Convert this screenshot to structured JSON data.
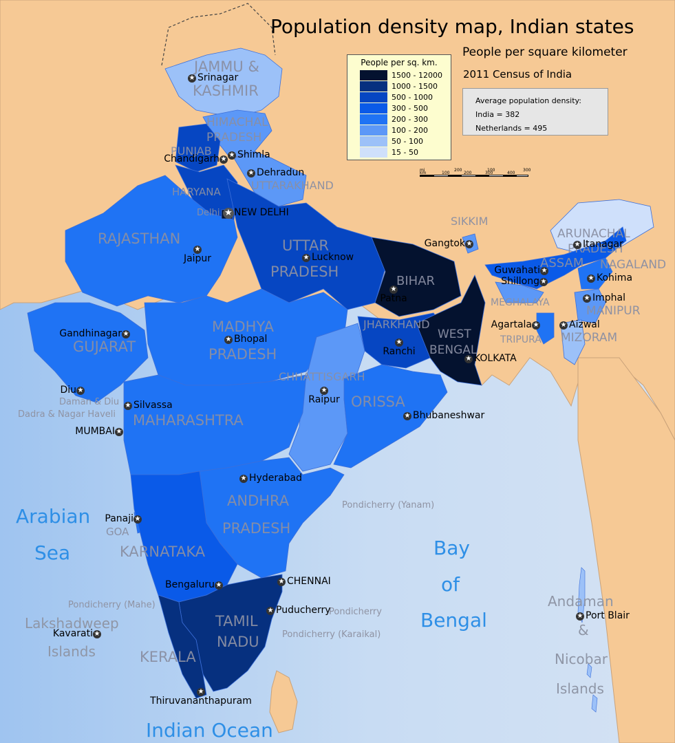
{
  "title": "Population density map, Indian states",
  "subtitle": "People per square kilometer",
  "census": "2011 Census of India",
  "legend": {
    "title": "People per sq. km.",
    "items": [
      {
        "label": "1500 - 12000",
        "color": "#04122f"
      },
      {
        "label": "1000 - 1500",
        "color": "#06307f"
      },
      {
        "label": "500 - 1000",
        "color": "#0646c2"
      },
      {
        "label": "300 - 500",
        "color": "#0a5ae8"
      },
      {
        "label": "200 - 300",
        "color": "#1f73f4"
      },
      {
        "label": "100 - 200",
        "color": "#5c98f7"
      },
      {
        "label": "50 - 100",
        "color": "#9cc1f8"
      },
      {
        "label": "15 - 50",
        "color": "#cfe0fb"
      }
    ]
  },
  "average": {
    "heading": "Average population density:",
    "india": "India = 382",
    "netherlands": "Netherlands = 495"
  },
  "scale": {
    "top": [
      "0",
      "200",
      "100",
      "300"
    ],
    "bottom": [
      "0",
      "100",
      "200",
      "300",
      "400"
    ],
    "unit_top": "mi",
    "unit_bottom": "km"
  },
  "states": {
    "jk": "JAMMU &",
    "jk2": "KASHMIR",
    "hp": "HIMACHAL",
    "hp2": "PRADESH",
    "punjab": "PUNJAB",
    "haryana": "HARYANA",
    "delhi": "Delhi",
    "uttarakhand": "UTTARAKHAND",
    "rajasthan": "RAJASTHAN",
    "up": "UTTAR",
    "up2": "PRADESH",
    "bihar": "BIHAR",
    "sikkim": "SIKKIM",
    "arunachal": "ARUNACHAL",
    "arunachal2": "PRADESH",
    "assam": "ASSAM",
    "nagaland": "NAGALAND",
    "meghalaya": "MEGHALAYA",
    "manipur": "MANIPUR",
    "tripura": "TRIPURA",
    "mizoram": "MIZORAM",
    "jharkhand": "JHARKHAND",
    "wb": "WEST",
    "wb2": "BENGAL",
    "mp": "MADHYA",
    "mp2": "PRADESH",
    "gujarat": "GUJARAT",
    "chhattisgarh": "CHHATTISGARH",
    "orissa": "ORISSA",
    "maharashtra": "MAHARASHTRA",
    "ap": "ANDHRA",
    "ap2": "PRADESH",
    "goa": "GOA",
    "karnataka": "KARNATAKA",
    "tn": "TAMIL",
    "tn2": "NADU",
    "kerala": "KERALA"
  },
  "uts": {
    "daman": "Daman & Diu",
    "dadra": "Dadra & Nagar Haveli",
    "yanam": "Pondicherry (Yanam)",
    "mahe": "Pondicherry (Mahe)",
    "pondi": "Pondicherry",
    "karaikal": "Pondicherry (Karaikal)"
  },
  "islands": {
    "andaman": "Andaman",
    "amp": "&",
    "nicobar": "Nicobar",
    "islands": "Islands",
    "lakshadweep": "Lakshadweep",
    "lak_islands": "Islands"
  },
  "seas": {
    "arabian": "Arabian",
    "arabian2": "Sea",
    "bay": "Bay",
    "bay2": "of",
    "bay3": "Bengal",
    "ocean": "Indian Ocean"
  },
  "cities": {
    "srinagar": "Srinagar",
    "shimla": "Shimla",
    "chandigarh": "Chandigarh",
    "dehradun": "Dehradun",
    "newdelhi": "NEW DELHI",
    "jaipur": "Jaipur",
    "lucknow": "Lucknow",
    "gangtok": "Gangtok",
    "itanagar": "Itanagar",
    "guwahati": "Guwahati",
    "shillong": "Shillong",
    "kohima": "Kohima",
    "imphal": "Imphal",
    "patna": "Patna",
    "agartala": "Agartala",
    "aizwal": "Aizwal",
    "gandhinagar": "Gandhinagar",
    "bhopal": "Bhopal",
    "ranchi": "Ranchi",
    "kolkata": "KOLKATA",
    "diu": "Diu",
    "silvassa": "Silvassa",
    "raipur": "Raipur",
    "bhubaneshwar": "Bhubaneshwar",
    "mumbai": "MUMBAI",
    "hyderabad": "Hyderabad",
    "panaji": "Panaji",
    "chennai": "CHENNAI",
    "bengaluru": "Bengaluru",
    "puducherry": "Puducherry",
    "kavarati": "Kavarati",
    "portblair": "Port Blair",
    "thiruvananthapuram": "Thiruvananthapuram"
  }
}
